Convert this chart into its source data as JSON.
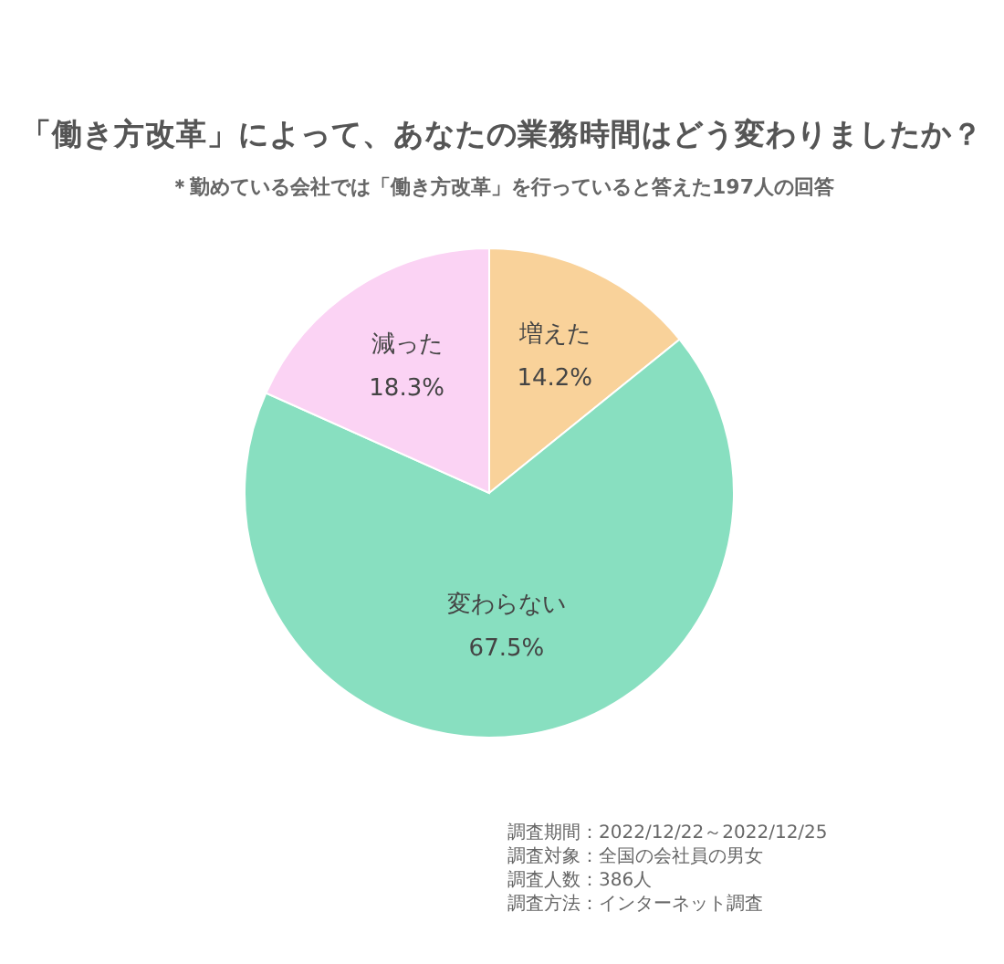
{
  "chart_data": {
    "type": "pie",
    "title": "「働き方改革」によって、あなたの業務時間はどう変わりましたか？",
    "subtitle": "＊勤めている会社では「働き方改革」を行っていると答えた197人の回答",
    "categories": [
      "増えた",
      "変わらない",
      "減った"
    ],
    "values": [
      14.2,
      67.5,
      18.3
    ],
    "colors": [
      "#f9d29a",
      "#88dfc0",
      "#fbd3f4"
    ],
    "value_labels": [
      "14.2%",
      "67.5%",
      "18.3%"
    ],
    "annotations": [
      "調査期間：2022/12/22～2022/12/25",
      "調査対象：全国の会社員の男女",
      "調査人数：386人",
      "調査方法：インターネット調査"
    ]
  }
}
